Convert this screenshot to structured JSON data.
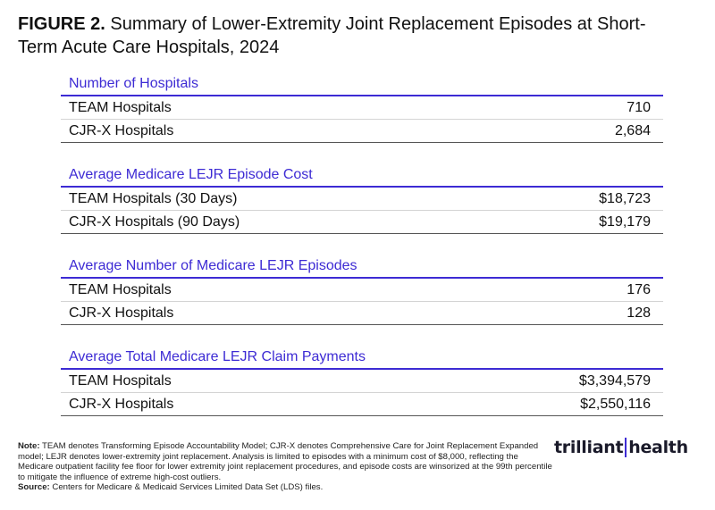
{
  "figure": {
    "label": "FIGURE 2.",
    "title": "Summary of Lower-Extremity Joint Replacement Episodes at Short-Term Acute Care Hospitals, 2024"
  },
  "sections": [
    {
      "title": "Number of Hospitals",
      "rows": [
        {
          "label": "TEAM Hospitals",
          "value": "710"
        },
        {
          "label": "CJR-X Hospitals",
          "value": "2,684"
        }
      ]
    },
    {
      "title": "Average Medicare LEJR Episode Cost",
      "rows": [
        {
          "label": "TEAM Hospitals (30 Days)",
          "value": "$18,723"
        },
        {
          "label": "CJR-X Hospitals (90 Days)",
          "value": "$19,179"
        }
      ]
    },
    {
      "title": "Average Number of Medicare LEJR Episodes",
      "rows": [
        {
          "label": "TEAM Hospitals",
          "value": "176"
        },
        {
          "label": "CJR-X Hospitals",
          "value": "128"
        }
      ]
    },
    {
      "title": "Average Total Medicare LEJR Claim Payments",
      "rows": [
        {
          "label": "TEAM Hospitals",
          "value": "$3,394,579"
        },
        {
          "label": "CJR-X Hospitals",
          "value": "$2,550,116"
        }
      ]
    }
  ],
  "footnote": {
    "note_label": "Note:",
    "note_text": "TEAM denotes Transforming Episode Accountability Model; CJR-X denotes Comprehensive Care for Joint Replacement Expanded model; LEJR denotes lower-extremity joint replacement. Analysis is limited to episodes with a minimum cost of $8,000, reflecting the Medicare outpatient facility fee floor for lower extremity joint replacement procedures, and episode costs are winsorized at the 99th percentile to mitigate the influence of extreme high-cost outliers.",
    "source_label": "Source:",
    "source_text": "Centers for Medicare & Medicaid Services Limited Data Set (LDS) files."
  },
  "logo": {
    "part1": "trilliant",
    "part2": "health"
  },
  "colors": {
    "accent": "#3d2bd4",
    "text": "#111111"
  }
}
